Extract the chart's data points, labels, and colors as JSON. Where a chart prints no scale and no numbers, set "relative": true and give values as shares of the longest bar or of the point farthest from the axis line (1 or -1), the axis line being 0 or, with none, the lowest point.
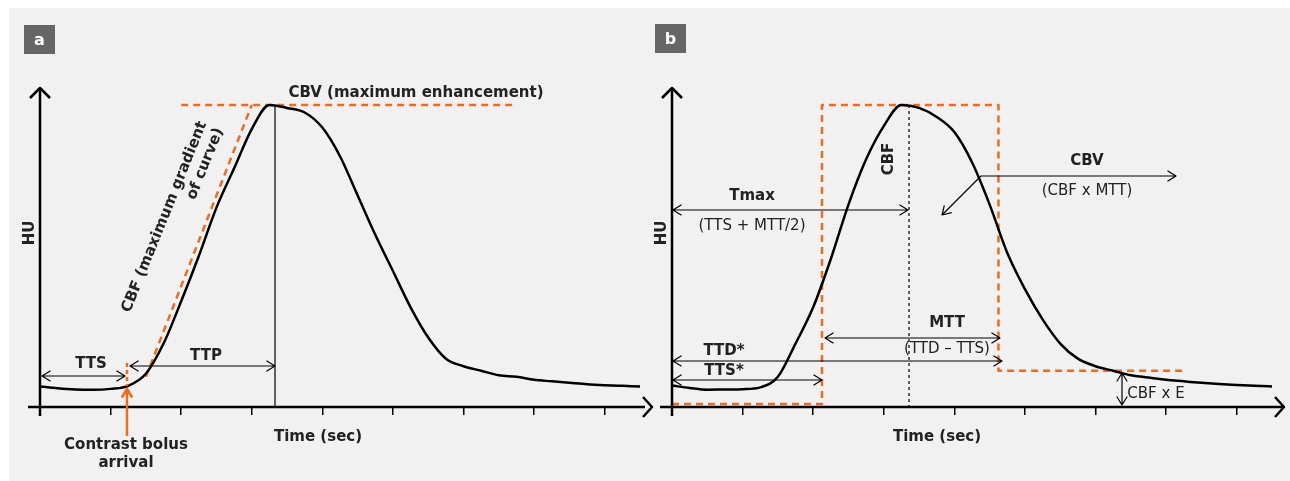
{
  "chart_data": [
    {
      "type": "line",
      "title": "a",
      "xlabel": "Time (sec)",
      "ylabel": "HU",
      "relative": true,
      "marker": "none",
      "categories": [
        null,
        null,
        null,
        null,
        null,
        null,
        null,
        null,
        null,
        null,
        null,
        null,
        null,
        null,
        null,
        null,
        null,
        null,
        null,
        null,
        null,
        null,
        null,
        null,
        null,
        null,
        null,
        null,
        null,
        null,
        null,
        null,
        null,
        null,
        null
      ],
      "series": [
        {
          "type": "line",
          "color": "#000000",
          "values": [
            0.068,
            0.062,
            0.058,
            0.057,
            0.06,
            0.07,
            0.11,
            0.21,
            0.35,
            0.5,
            0.66,
            0.79,
            0.92,
            1.0,
            0.99,
            0.975,
            0.925,
            0.83,
            0.7,
            0.57,
            0.45,
            0.33,
            0.23,
            0.16,
            0.135,
            0.12,
            0.105,
            0.1,
            0.09,
            0.085,
            0.08,
            0.075,
            0.072,
            0.07,
            0.068
          ]
        },
        {
          "type": "line",
          "color": "#ee6c1f",
          "line_style": "dashed",
          "values": [
            null,
            null,
            null,
            null,
            null,
            null,
            0.1,
            0.25,
            0.4,
            0.55,
            0.7,
            0.85,
            1.0,
            null,
            null,
            null,
            null,
            null,
            null,
            null,
            null,
            null,
            null,
            null,
            null,
            null,
            null,
            null,
            null,
            null,
            null,
            null,
            null,
            null,
            null
          ]
        },
        {
          "type": "line",
          "color": "#ee6c1f",
          "line_style": "dashed",
          "values": [
            null,
            null,
            null,
            null,
            null,
            null,
            null,
            null,
            1.0,
            1.0,
            1.0,
            1.0,
            1.0,
            1.0,
            1.0,
            1.0,
            1.0,
            1.0,
            1.0,
            1.0,
            1.0,
            1.0,
            1.0,
            1.0,
            1.0,
            1.0,
            1.0,
            1.0,
            null,
            null,
            null,
            null,
            null,
            null,
            null
          ]
        }
      ],
      "annotations": [
        "CBV (maximum enhancement)",
        "CBF (maximum gradient of curve)",
        "TTS",
        "TTP",
        "Contrast bolus arrival"
      ]
    },
    {
      "type": "line",
      "title": "b",
      "xlabel": "Time (sec)",
      "ylabel": "HU",
      "relative": true,
      "marker": "none",
      "categories": [
        null,
        null,
        null,
        null,
        null,
        null,
        null,
        null,
        null,
        null,
        null,
        null,
        null,
        null,
        null,
        null,
        null,
        null,
        null,
        null,
        null,
        null,
        null,
        null,
        null,
        null,
        null,
        null,
        null,
        null,
        null,
        null,
        null,
        null,
        null
      ],
      "series": [
        {
          "type": "line",
          "color": "#000000",
          "values": [
            0.071,
            0.063,
            0.057,
            0.058,
            0.059,
            0.065,
            0.1,
            0.21,
            0.33,
            0.49,
            0.67,
            0.82,
            0.93,
            1.0,
            0.99,
            0.96,
            0.91,
            0.81,
            0.67,
            0.51,
            0.39,
            0.29,
            0.21,
            0.16,
            0.135,
            0.12,
            0.105,
            0.098,
            0.09,
            0.085,
            0.08,
            0.076,
            0.073,
            0.07,
            0.068
          ]
        },
        {
          "type": "step",
          "color": "#ee6c1f",
          "line_style": "dashed",
          "values": [
            0.01,
            0.01,
            0.01,
            0.01,
            0.01,
            0.01,
            0.01,
            0.01,
            0.01,
            1.0,
            1.0,
            1.0,
            1.0,
            1.0,
            1.0,
            1.0,
            1.0,
            1.0,
            1.0,
            0.12,
            0.12,
            0.12,
            0.12,
            0.12,
            0.12,
            0.12,
            0.12,
            0.12,
            0.12,
            0.12,
            null,
            null,
            null,
            null,
            null
          ]
        }
      ],
      "annotations": [
        "CBF",
        "Tmax",
        "(TTS + MTT/2)",
        "CBV",
        "(CBF x MTT)",
        "MTT",
        "(TTD – TTS)",
        "TTD*",
        "TTS*",
        "CBF x E"
      ]
    }
  ]
}
